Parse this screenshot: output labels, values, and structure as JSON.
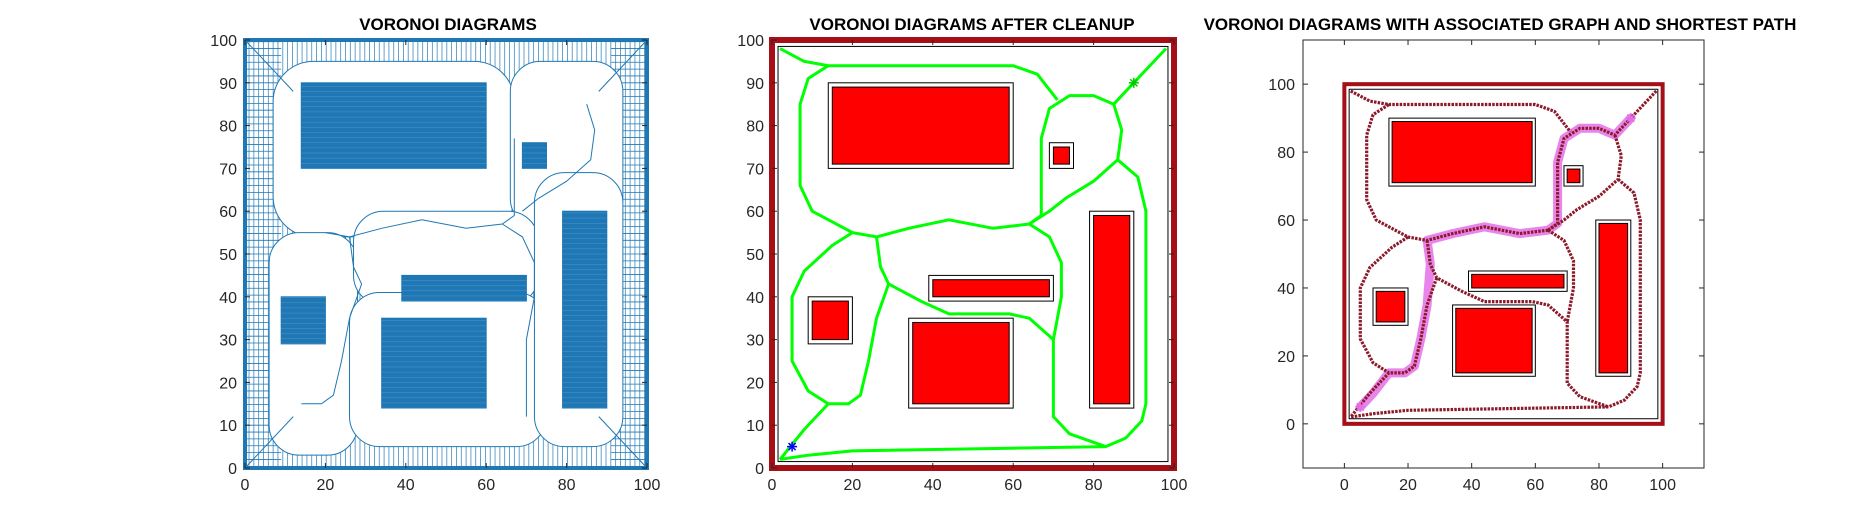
{
  "figure": {
    "colors": {
      "voronoi_blue": "#1f77b4",
      "boundary_darkred": "#a50f15",
      "obstacle_red": "#ff0000",
      "path_green": "#00ff00",
      "graph_maroon": "#8b1a2b",
      "path_magenta": "#e46ee6",
      "start_blue": "#0000ff",
      "goal_green": "#00cc00"
    }
  },
  "chart_data": [
    {
      "type": "diagram",
      "title": "VORONOI DIAGRAMS",
      "xlim": [
        0,
        100
      ],
      "ylim": [
        0,
        100
      ],
      "xticks": [
        "0",
        "20",
        "40",
        "60",
        "80",
        "100"
      ],
      "yticks": [
        "0",
        "10",
        "20",
        "30",
        "40",
        "50",
        "60",
        "70",
        "80",
        "90",
        "100"
      ],
      "obstacles": [
        {
          "x": 14,
          "y": 70,
          "w": 46,
          "h": 20
        },
        {
          "x": 69,
          "y": 70,
          "w": 6,
          "h": 6
        },
        {
          "x": 39,
          "y": 39,
          "w": 31,
          "h": 6
        },
        {
          "x": 9,
          "y": 29,
          "w": 11,
          "h": 11
        },
        {
          "x": 34,
          "y": 14,
          "w": 26,
          "h": 21
        },
        {
          "x": 79,
          "y": 14,
          "w": 11,
          "h": 46
        }
      ]
    },
    {
      "type": "diagram",
      "title": "VORONOI DIAGRAMS AFTER CLEANUP",
      "xlim": [
        0,
        100
      ],
      "ylim": [
        0,
        100
      ],
      "xticks": [
        "0",
        "20",
        "40",
        "60",
        "80",
        "100"
      ],
      "yticks": [
        "0",
        "10",
        "20",
        "30",
        "40",
        "50",
        "60",
        "70",
        "80",
        "90",
        "100"
      ],
      "start": {
        "x": 5,
        "y": 5
      },
      "goal": {
        "x": 90,
        "y": 90
      },
      "obstacles": [
        {
          "x": 15,
          "y": 71,
          "w": 44,
          "h": 18
        },
        {
          "x": 70,
          "y": 71,
          "w": 4,
          "h": 4
        },
        {
          "x": 40,
          "y": 40,
          "w": 29,
          "h": 4
        },
        {
          "x": 10,
          "y": 30,
          "w": 9,
          "h": 9
        },
        {
          "x": 35,
          "y": 15,
          "w": 24,
          "h": 19
        },
        {
          "x": 80,
          "y": 15,
          "w": 9,
          "h": 44
        }
      ],
      "voronoi_edges": [
        [
          [
            2,
            98
          ],
          [
            8,
            95
          ],
          [
            14,
            94
          ],
          [
            60,
            94
          ],
          [
            66,
            92
          ],
          [
            71,
            86
          ]
        ],
        [
          [
            98,
            98
          ],
          [
            92,
            92
          ],
          [
            85,
            85
          ],
          [
            80,
            87
          ],
          [
            74,
            87
          ],
          [
            69,
            84
          ],
          [
            67,
            77
          ],
          [
            67,
            59
          ],
          [
            64,
            57
          ]
        ],
        [
          [
            85,
            85
          ],
          [
            87,
            79
          ],
          [
            86,
            72
          ],
          [
            80,
            67
          ],
          [
            73,
            63
          ],
          [
            69,
            60
          ],
          [
            64,
            57
          ]
        ],
        [
          [
            86,
            72
          ],
          [
            91,
            68
          ],
          [
            93,
            60
          ],
          [
            93,
            15
          ],
          [
            92,
            11
          ],
          [
            88,
            7
          ],
          [
            83,
            5
          ],
          [
            20,
            4
          ],
          [
            9,
            3
          ],
          [
            2,
            2
          ]
        ],
        [
          [
            64,
            57
          ],
          [
            55,
            56
          ],
          [
            44,
            58
          ],
          [
            34,
            56
          ],
          [
            26,
            54
          ],
          [
            20,
            55
          ],
          [
            10,
            60
          ],
          [
            7,
            66
          ],
          [
            7,
            85
          ],
          [
            9,
            91
          ],
          [
            14,
            94
          ]
        ],
        [
          [
            20,
            55
          ],
          [
            15,
            52
          ],
          [
            8,
            46
          ],
          [
            5,
            40
          ],
          [
            5,
            25
          ],
          [
            9,
            18
          ],
          [
            14,
            15
          ]
        ],
        [
          [
            26,
            54
          ],
          [
            27,
            47
          ],
          [
            29,
            43
          ],
          [
            37,
            39
          ],
          [
            44,
            36
          ],
          [
            59,
            36
          ],
          [
            64,
            35
          ],
          [
            70,
            30
          ],
          [
            70,
            12
          ],
          [
            74,
            8
          ],
          [
            83,
            5
          ]
        ],
        [
          [
            29,
            43
          ],
          [
            26,
            35
          ],
          [
            24,
            25
          ],
          [
            22,
            17
          ],
          [
            19,
            15
          ],
          [
            14,
            15
          ],
          [
            8,
            9
          ],
          [
            2,
            2
          ]
        ],
        [
          [
            64,
            57
          ],
          [
            69,
            54
          ],
          [
            72,
            48
          ],
          [
            72,
            40
          ],
          [
            70,
            30
          ]
        ]
      ]
    },
    {
      "type": "diagram",
      "title": "VORONOI DIAGRAMS WITH ASSOCIATED GRAPH AND SHORTEST PATH",
      "xlim": [
        -13,
        113
      ],
      "ylim": [
        -13,
        113
      ],
      "xticks": [
        "0",
        "20",
        "40",
        "60",
        "80",
        "100"
      ],
      "yticks": [
        "0",
        "20",
        "40",
        "60",
        "80",
        "100"
      ],
      "start": {
        "x": 5,
        "y": 5
      },
      "goal": {
        "x": 90,
        "y": 90
      },
      "obstacles": [
        {
          "x": 15,
          "y": 71,
          "w": 44,
          "h": 18
        },
        {
          "x": 70,
          "y": 71,
          "w": 4,
          "h": 4
        },
        {
          "x": 40,
          "y": 40,
          "w": 29,
          "h": 4
        },
        {
          "x": 10,
          "y": 30,
          "w": 9,
          "h": 9
        },
        {
          "x": 35,
          "y": 15,
          "w": 24,
          "h": 19
        },
        {
          "x": 80,
          "y": 15,
          "w": 9,
          "h": 44
        }
      ],
      "shortest_path": [
        [
          5,
          5
        ],
        [
          9,
          9
        ],
        [
          14,
          15
        ],
        [
          19,
          15
        ],
        [
          22,
          17
        ],
        [
          24,
          25
        ],
        [
          26,
          35
        ],
        [
          27,
          47
        ],
        [
          26,
          54
        ],
        [
          34,
          56
        ],
        [
          44,
          58
        ],
        [
          55,
          56
        ],
        [
          64,
          57
        ],
        [
          67,
          59
        ],
        [
          67,
          77
        ],
        [
          69,
          84
        ],
        [
          74,
          87
        ],
        [
          80,
          87
        ],
        [
          85,
          85
        ],
        [
          90,
          90
        ]
      ]
    }
  ]
}
